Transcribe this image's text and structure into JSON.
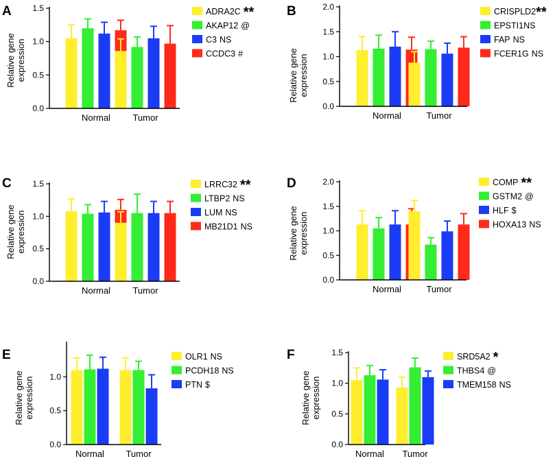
{
  "colors": {
    "yellow": "#ffee2e",
    "green": "#33ee33",
    "blue": "#1a3cf5",
    "red": "#ff2a1a",
    "axis": "#000000"
  },
  "chart_data": [
    {
      "type": "bar",
      "panel": "A",
      "categories": [
        "Normal",
        "Tumor"
      ],
      "ylabel": [
        "Relative gene",
        "expression"
      ],
      "ylim": [
        0,
        1.5
      ],
      "yticks": [
        0,
        0.5,
        1.0,
        1.5
      ],
      "ytick_labels": [
        "0.0",
        "0.5",
        "1.0",
        "1.5"
      ],
      "series": [
        {
          "name": "ADRA2C",
          "mark": "**",
          "color": "#ffee2e",
          "values": [
            1.05,
            0.86
          ],
          "errors": [
            0.2,
            0.18
          ]
        },
        {
          "name": "AKAP12",
          "mark": "@",
          "color": "#33ee33",
          "values": [
            1.2,
            0.92
          ],
          "errors": [
            0.14,
            0.15
          ]
        },
        {
          "name": "C3",
          "mark": "NS",
          "color": "#1a3cf5",
          "values": [
            1.12,
            1.05
          ],
          "errors": [
            0.17,
            0.18
          ]
        },
        {
          "name": "CCDC3",
          "mark": "#",
          "color": "#ff2a1a",
          "values": [
            1.17,
            0.97
          ],
          "errors": [
            0.15,
            0.27
          ]
        }
      ]
    },
    {
      "type": "bar",
      "panel": "B",
      "categories": [
        "Normal",
        "Tumor"
      ],
      "ylabel": [
        "Relative gene",
        "expression"
      ],
      "ylim": [
        0,
        2.0
      ],
      "yticks": [
        0,
        0.5,
        1.0,
        1.5,
        2.0
      ],
      "ytick_labels": [
        "0.0",
        "0.5",
        "1.0",
        "1.5",
        "2.0"
      ],
      "series": [
        {
          "name": "CRISPLD2",
          "mark": "**",
          "color": "#ffee2e",
          "values": [
            1.13,
            0.88
          ],
          "errors": [
            0.27,
            0.22
          ]
        },
        {
          "name": "EPSTI1",
          "mark": "NS",
          "color": "#33ee33",
          "values": [
            1.16,
            1.15
          ],
          "errors": [
            0.27,
            0.16
          ]
        },
        {
          "name": "FAP",
          "mark": "NS",
          "color": "#1a3cf5",
          "values": [
            1.2,
            1.06
          ],
          "errors": [
            0.3,
            0.21
          ]
        },
        {
          "name": "FCER1G",
          "mark": "NS",
          "color": "#ff2a1a",
          "values": [
            1.14,
            1.18
          ],
          "errors": [
            0.25,
            0.22
          ]
        }
      ]
    },
    {
      "type": "bar",
      "panel": "C",
      "categories": [
        "Normal",
        "Tumor"
      ],
      "ylabel": [
        "Relative gene",
        "expression"
      ],
      "ylim": [
        0,
        1.5
      ],
      "yticks": [
        0,
        0.5,
        1.0,
        1.5
      ],
      "ytick_labels": [
        "0.0",
        "0.5",
        "1.0",
        "1.5"
      ],
      "series": [
        {
          "name": "LRRC32",
          "mark": "**",
          "color": "#ffee2e",
          "values": [
            1.08,
            0.9
          ],
          "errors": [
            0.19,
            0.17
          ]
        },
        {
          "name": "LTBP2",
          "mark": "NS",
          "color": "#33ee33",
          "values": [
            1.04,
            1.05
          ],
          "errors": [
            0.14,
            0.29
          ]
        },
        {
          "name": "LUM",
          "mark": "NS",
          "color": "#1a3cf5",
          "values": [
            1.06,
            1.05
          ],
          "errors": [
            0.17,
            0.18
          ]
        },
        {
          "name": "MB21D1",
          "mark": "NS",
          "color": "#ff2a1a",
          "values": [
            1.1,
            1.05
          ],
          "errors": [
            0.16,
            0.18
          ]
        }
      ]
    },
    {
      "type": "bar",
      "panel": "D",
      "categories": [
        "Normal",
        "Tumor"
      ],
      "ylabel": [
        "Relative gene",
        "expression"
      ],
      "ylim": [
        0,
        2.0
      ],
      "yticks": [
        0,
        0.5,
        1.0,
        1.5,
        2.0
      ],
      "ytick_labels": [
        "0.0",
        "0.5",
        "1.0",
        "1.5",
        "2.0"
      ],
      "series": [
        {
          "name": "COMP",
          "mark": "**",
          "color": "#ffee2e",
          "values": [
            1.13,
            1.4
          ],
          "errors": [
            0.28,
            0.22
          ]
        },
        {
          "name": "GSTM2",
          "mark": "@",
          "color": "#33ee33",
          "values": [
            1.05,
            0.72
          ],
          "errors": [
            0.22,
            0.14
          ]
        },
        {
          "name": "HLF",
          "mark": "$",
          "color": "#1a3cf5",
          "values": [
            1.13,
            0.99
          ],
          "errors": [
            0.28,
            0.21
          ]
        },
        {
          "name": "HOXA13",
          "mark": "NS",
          "color": "#ff2a1a",
          "values": [
            1.13,
            1.13
          ],
          "errors": [
            0.32,
            0.22
          ]
        }
      ]
    },
    {
      "type": "bar",
      "panel": "E",
      "categories": [
        "Normal",
        "Tumor"
      ],
      "ylabel": [
        "Relative gene",
        "expression"
      ],
      "ylim": [
        0,
        1.5
      ],
      "yticks": [
        0,
        0.5,
        1.0
      ],
      "ytick_labels": [
        "0.0",
        "0.5",
        "1.0"
      ],
      "series": [
        {
          "name": "OLR1",
          "mark": "NS",
          "color": "#ffee2e",
          "values": [
            1.1,
            1.1
          ],
          "errors": [
            0.18,
            0.18
          ]
        },
        {
          "name": "PCDH18",
          "mark": "NS",
          "color": "#33ee33",
          "values": [
            1.11,
            1.1
          ],
          "errors": [
            0.21,
            0.13
          ]
        },
        {
          "name": "PTN",
          "mark": "$",
          "color": "#1a3cf5",
          "values": [
            1.12,
            0.83
          ],
          "errors": [
            0.17,
            0.2
          ]
        }
      ]
    },
    {
      "type": "bar",
      "panel": "F",
      "categories": [
        "Normal",
        "Tumor"
      ],
      "ylabel": [
        "Relative gene",
        "expression"
      ],
      "ylim": [
        0,
        1.5
      ],
      "yticks": [
        0,
        0.5,
        1.0,
        1.5
      ],
      "ytick_labels": [
        "0.0",
        "0.5",
        "1.0",
        "1.5"
      ],
      "series": [
        {
          "name": "SRD5A2",
          "mark": "*",
          "color": "#ffee2e",
          "values": [
            1.05,
            0.93
          ],
          "errors": [
            0.2,
            0.17
          ]
        },
        {
          "name": "THBS4",
          "mark": "@",
          "color": "#33ee33",
          "values": [
            1.13,
            1.26
          ],
          "errors": [
            0.16,
            0.15
          ]
        },
        {
          "name": "TMEM158",
          "mark": "NS",
          "color": "#1a3cf5",
          "values": [
            1.06,
            1.1
          ],
          "errors": [
            0.16,
            0.1
          ]
        }
      ]
    }
  ]
}
